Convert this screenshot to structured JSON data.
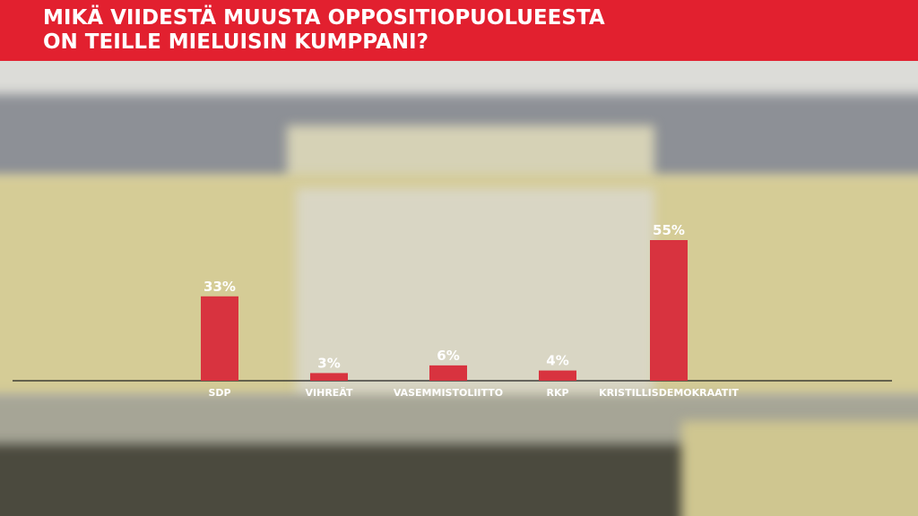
{
  "chart_data": {
    "type": "bar",
    "title": "MIKÄ VIIDESTÄ MUUSTA OPPOSITIOPUOLUEESTA\nON TEILLE MIELUISIN KUMPPANI?",
    "categories": [
      "SDP",
      "VIHREÄT",
      "VASEMMISTOLIITTO",
      "RKP",
      "KRISTILLISDEMOKRAATIT"
    ],
    "values": [
      33,
      3,
      6,
      4,
      55
    ],
    "value_labels": [
      "33%",
      "3%",
      "6%",
      "4%",
      "55%"
    ],
    "color": "#d8333f"
  }
}
